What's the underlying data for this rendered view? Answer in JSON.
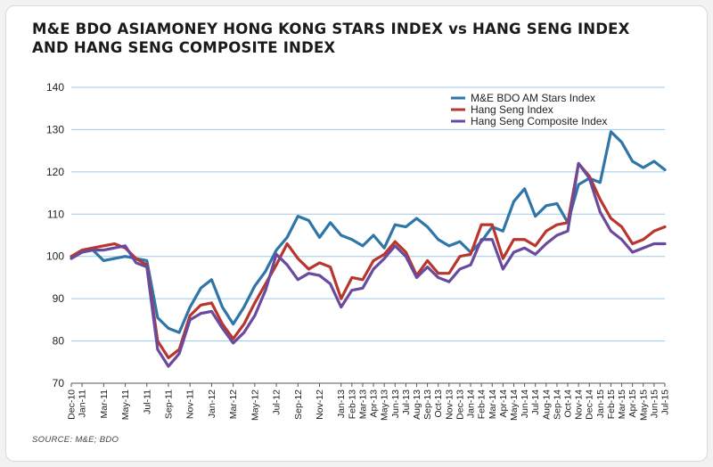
{
  "chart_data": {
    "type": "line",
    "title_line1": "M&E BDO ASIAMONEY HONG KONG STARS INDEX vs HANG SENG INDEX",
    "title_line2": "AND HANG SENG COMPOSITE INDEX",
    "source": "SOURCE: M&E; BDO",
    "ylim": [
      70,
      140
    ],
    "yticks": [
      70,
      80,
      90,
      100,
      110,
      120,
      130,
      140
    ],
    "grid": true,
    "legend_position": "top-right",
    "x": [
      "Dec-10",
      "Jan-11",
      "Feb-11",
      "Mar-11",
      "Apr-11",
      "May-11",
      "Jun-11",
      "Jul-11",
      "Aug-11",
      "Sep-11",
      "Oct-11",
      "Nov-11",
      "Dec-11",
      "Jan-12",
      "Feb-12",
      "Mar-12",
      "Apr-12",
      "May-12",
      "Jun-12",
      "Jul-12",
      "Aug-12",
      "Sep-12",
      "Oct-12",
      "Nov-12",
      "Dec-12",
      "Jan-13",
      "Feb-13",
      "Mar-13",
      "Apr-13",
      "May-13",
      "Jun-13",
      "Jul-13",
      "Aug-13",
      "Sep-13",
      "Oct-13",
      "Nov-13",
      "Dec-13",
      "Jan-14",
      "Feb-14",
      "Mar-14",
      "Apr-14",
      "May-14",
      "Jun-14",
      "Jul-14",
      "Aug-14",
      "Sep-14",
      "Oct-14",
      "Nov-14",
      "Dec-14",
      "Jan-15",
      "Feb-15",
      "Mar-15",
      "Apr-15",
      "May-15",
      "Jun-15",
      "Jul-15"
    ],
    "x_tick_labels": [
      "Dec-10",
      "Jan-11",
      "Mar-11",
      "May-11",
      "Jul-11",
      "Sep-11",
      "Nov-11",
      "Jan-12",
      "Mar-12",
      "May-12",
      "Jul-12",
      "Sep-12",
      "Nov-12",
      "Jan-13",
      "Feb-13",
      "Mar-13",
      "Apr-13",
      "May-13",
      "Jun-13",
      "Jul-13",
      "Aug-13",
      "Sep-13",
      "Oct-13",
      "Nov-13",
      "Dec-13",
      "Jan-14",
      "Feb-14",
      "Mar-14",
      "Apr-14",
      "May-14",
      "Jun-14",
      "Jul-14",
      "Aug-14",
      "Sep-14",
      "Oct-14",
      "Nov-14",
      "Dec-14",
      "Jan-15",
      "Feb-15",
      "Mar-15",
      "Apr-15",
      "May-15",
      "Jun-15",
      "Jul-15"
    ],
    "series": [
      {
        "name": "M&E BDO AM Stars Index",
        "color": "#2e75a8",
        "values": [
          100,
          101,
          101.5,
          99,
          99.5,
          100,
          99.5,
          99,
          85.5,
          83,
          82,
          88,
          92.5,
          94.5,
          88,
          84,
          88,
          93,
          96.5,
          101.5,
          104.5,
          109.5,
          108.5,
          104.5,
          108,
          105,
          104,
          102.5,
          105,
          102,
          107.5,
          107,
          109,
          107,
          104,
          102.5,
          103.5,
          101,
          103.5,
          107,
          106,
          113,
          116,
          109.5,
          112,
          112.5,
          108,
          117,
          118.5,
          117.5,
          129.5,
          127,
          122.5,
          121,
          122.5,
          120.5
        ]
      },
      {
        "name": "Hang Seng Index",
        "color": "#b8362e",
        "values": [
          100,
          101.5,
          102,
          102.5,
          103,
          102,
          99.5,
          98,
          80,
          76,
          78,
          86,
          88.5,
          89,
          84,
          80.5,
          84,
          89,
          93.5,
          98,
          103,
          99.5,
          97,
          98.5,
          97.5,
          90,
          95,
          94.5,
          99,
          100.5,
          103.5,
          101,
          95.5,
          99,
          96,
          96,
          100,
          100.5,
          107.5,
          107.5,
          99.5,
          104,
          104,
          102.5,
          106,
          107.5,
          108,
          122,
          119,
          113.5,
          109,
          107,
          103,
          104,
          106,
          107
        ]
      },
      {
        "name": "Hang Seng Composite Index",
        "color": "#6a4a9e",
        "values": [
          99.5,
          101,
          101.5,
          101.5,
          102,
          102.5,
          98.5,
          97.5,
          78,
          74,
          77,
          85,
          86.5,
          87,
          83,
          79.5,
          82,
          86,
          92,
          100.5,
          98,
          94.5,
          96,
          95.5,
          93.5,
          88,
          92,
          92.5,
          97,
          99.5,
          102.5,
          100,
          95,
          97.5,
          95,
          94,
          97,
          98,
          104,
          104,
          97,
          101,
          102,
          100.5,
          103,
          105,
          106,
          122,
          118.5,
          110.5,
          106,
          104,
          101,
          102,
          103,
          103
        ]
      }
    ]
  }
}
